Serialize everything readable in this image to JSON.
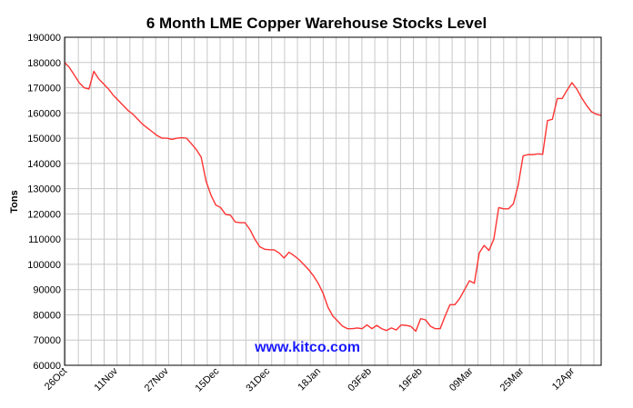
{
  "chart_data": {
    "type": "line",
    "title": "6 Month LME Copper Warehouse Stocks Level",
    "ylabel": "Tons",
    "xlabel": "",
    "watermark": "www.kitco.com",
    "ylim": [
      60000,
      190000
    ],
    "yticks": [
      60000,
      70000,
      80000,
      90000,
      100000,
      110000,
      120000,
      130000,
      140000,
      150000,
      160000,
      170000,
      180000,
      190000
    ],
    "xticks": [
      "26Oct",
      "11Nov",
      "27Nov",
      "15Dec",
      "31Dec",
      "18Jan",
      "03Feb",
      "19Feb",
      "09Mar",
      "25Mar",
      "12Apr"
    ],
    "grid": true,
    "line_color": "#ff3333",
    "series": [
      {
        "values": [
          180000,
          178000,
          175000,
          172000,
          170000,
          169500,
          176500,
          173500,
          171500,
          169500,
          167000,
          165000,
          163000,
          161000,
          159500,
          157500,
          155500,
          154000,
          152500,
          151000,
          150000,
          150000,
          149500,
          150000,
          150200,
          150000,
          147800,
          145500,
          142500,
          133000,
          127500,
          123500,
          122500,
          119800,
          119500,
          116800,
          116500,
          116500,
          113800,
          110000,
          107000,
          106000,
          105800,
          105700,
          104500,
          102500,
          104800,
          103500,
          102000,
          100000,
          98000,
          95500,
          92500,
          88500,
          83000,
          79500,
          77500,
          75500,
          74500,
          74500,
          74800,
          74500,
          76000,
          74500,
          75800,
          74500,
          73800,
          74800,
          74000,
          76000,
          75800,
          75400,
          73500,
          78500,
          78000,
          75500,
          74500,
          74500,
          79500,
          84000,
          84000,
          86500,
          90000,
          93500,
          92500,
          104500,
          107500,
          105500,
          110000,
          122500,
          122000,
          122000,
          124000,
          131500,
          143000,
          143500,
          143500,
          143800,
          143600,
          157000,
          157500,
          165700,
          165700,
          169000,
          172000,
          169500,
          166000,
          163000,
          160500,
          159500,
          159000
        ]
      }
    ]
  }
}
